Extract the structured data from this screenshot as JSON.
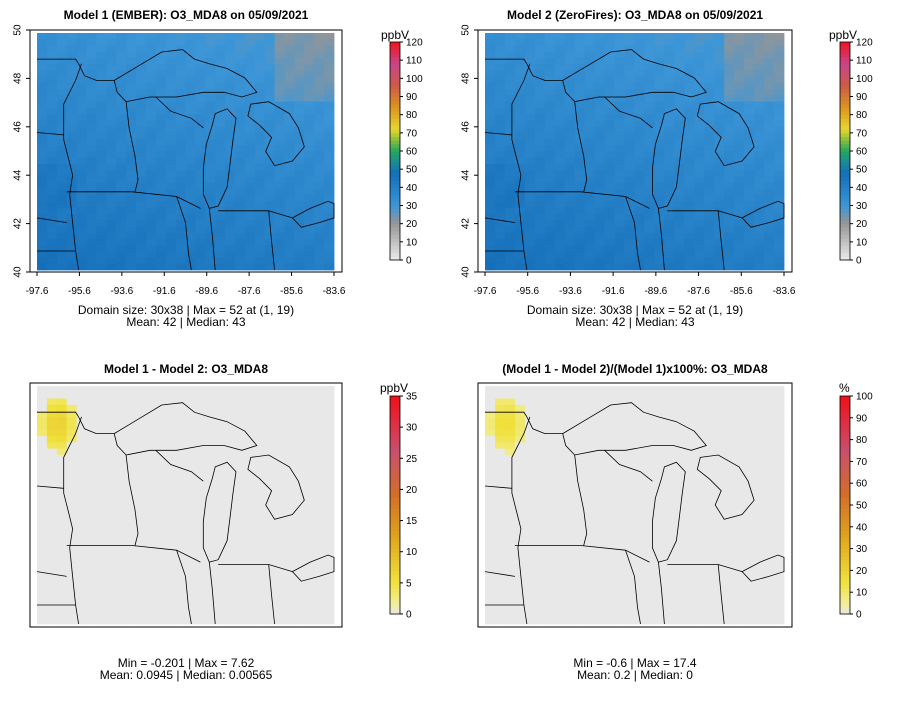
{
  "panels": [
    {
      "title": "Model 1 (EMBER): O3_MDA8 on 05/09/2021",
      "stats_line1": "Domain size: 30x38 | Max = 52 at (1, 19)",
      "stats_line2": "Mean: 42 |  Median: 43",
      "unit": "ppbV",
      "colorbar_ticks": [
        "0",
        "10",
        "20",
        "30",
        "40",
        "50",
        "60",
        "70",
        "80",
        "90",
        "100",
        "110",
        "120"
      ],
      "kind": "ozone",
      "show_axes": true
    },
    {
      "title": "Model 2 (ZeroFires): O3_MDA8 on 05/09/2021",
      "stats_line1": "Domain size: 30x38 | Max = 52 at (1, 19)",
      "stats_line2": "Mean: 42 |  Median: 43",
      "unit": "ppbV",
      "colorbar_ticks": [
        "0",
        "10",
        "20",
        "30",
        "40",
        "50",
        "60",
        "70",
        "80",
        "90",
        "100",
        "110",
        "120"
      ],
      "kind": "ozone",
      "show_axes": true
    },
    {
      "title": "Model 1 - Model 2: O3_MDA8",
      "stats_line1": "Min = -0.201 | Max = 7.62",
      "stats_line2": "Mean: 0.0945 |  Median: 0.00565",
      "unit": "ppbV",
      "colorbar_ticks": [
        "0",
        "5",
        "10",
        "15",
        "20",
        "25",
        "30",
        "35"
      ],
      "kind": "diff",
      "show_axes": false
    },
    {
      "title": "(Model 1 - Model 2)/(Model 1)x100%: O3_MDA8",
      "stats_line1": "Min = -0.6 | Max = 17.4",
      "stats_line2": "Mean: 0.2 |  Median: 0",
      "unit": "%",
      "colorbar_ticks": [
        "0",
        "10",
        "20",
        "30",
        "40",
        "50",
        "60",
        "70",
        "80",
        "90",
        "100"
      ],
      "kind": "diff",
      "show_axes": false
    }
  ],
  "axes": {
    "x_ticks": [
      "-97.6",
      "-95.6",
      "-93.6",
      "-91.6",
      "-89.6",
      "-87.6",
      "-85.6",
      "-83.6"
    ],
    "y_ticks": [
      "40",
      "42",
      "44",
      "46",
      "48",
      "50"
    ]
  },
  "chart_data": [
    {
      "type": "heatmap",
      "title": "Model 1 (EMBER): O3_MDA8 on 05/09/2021",
      "grid": "30x38",
      "units": "ppbV",
      "xlim": [
        -97.6,
        -83.6
      ],
      "ylim": [
        40,
        50
      ],
      "colorbar_range": [
        0,
        120
      ],
      "max": 52,
      "max_at": [
        1,
        19
      ],
      "mean": 42,
      "median": 43
    },
    {
      "type": "heatmap",
      "title": "Model 2 (ZeroFires): O3_MDA8 on 05/09/2021",
      "grid": "30x38",
      "units": "ppbV",
      "xlim": [
        -97.6,
        -83.6
      ],
      "ylim": [
        40,
        50
      ],
      "colorbar_range": [
        0,
        120
      ],
      "max": 52,
      "max_at": [
        1,
        19
      ],
      "mean": 42,
      "median": 43
    },
    {
      "type": "heatmap",
      "title": "Model 1 - Model 2: O3_MDA8",
      "units": "ppbV",
      "colorbar_range": [
        0,
        35
      ],
      "min": -0.201,
      "max": 7.62,
      "mean": 0.0945,
      "median": 0.00565
    },
    {
      "type": "heatmap",
      "title": "(Model 1 - Model 2)/(Model 1)x100%: O3_MDA8",
      "units": "%",
      "colorbar_range": [
        0,
        100
      ],
      "min": -0.6,
      "max": 17.4,
      "mean": 0.2,
      "median": 0
    }
  ]
}
